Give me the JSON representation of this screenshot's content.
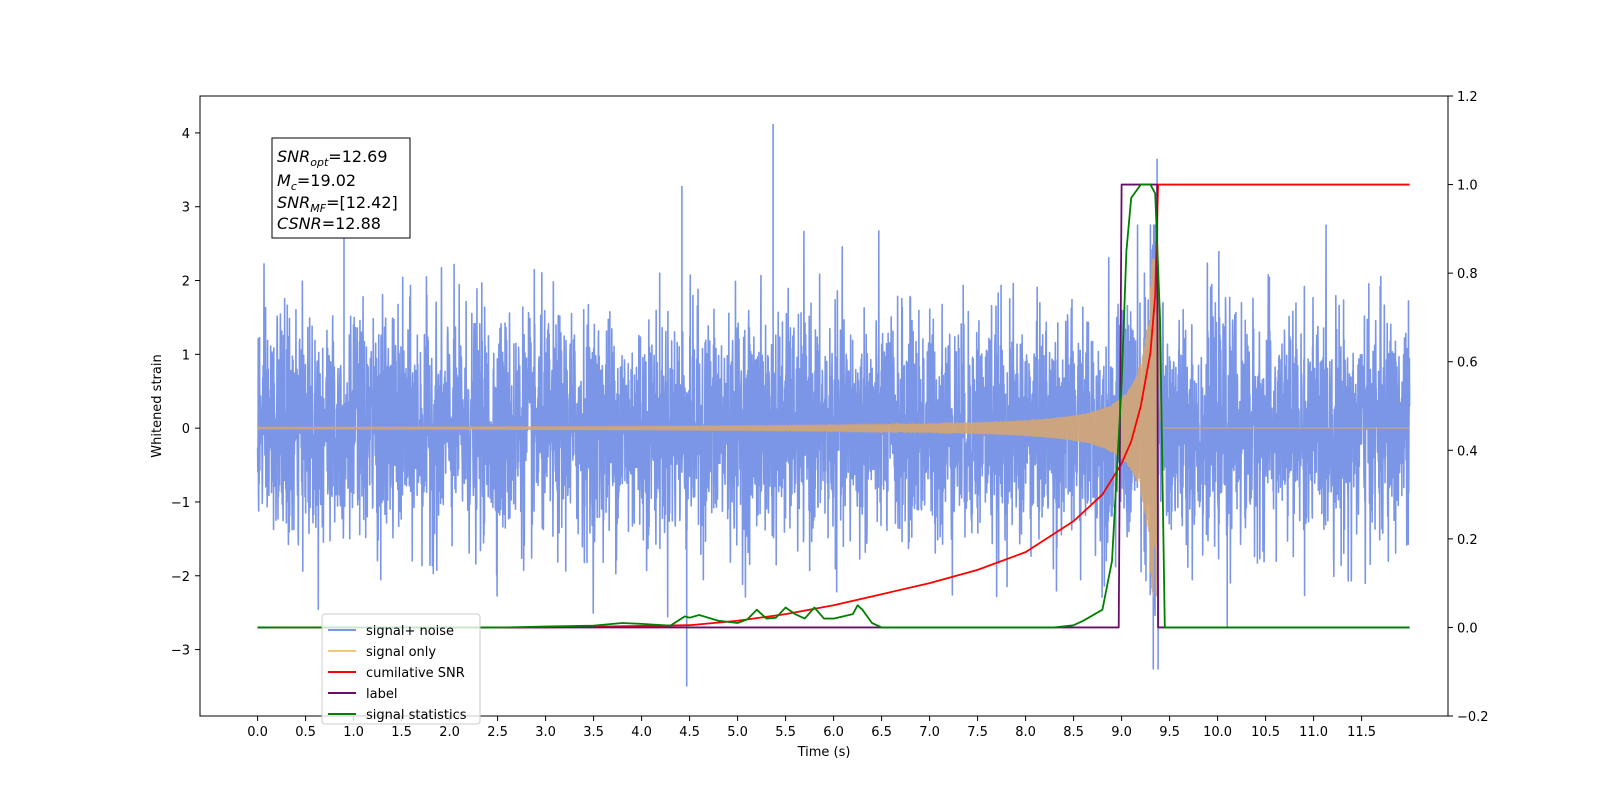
{
  "chart_data": {
    "type": "line",
    "xlabel": "Time (s)",
    "ylabel": "Whitened strain",
    "xlim": [
      -0.6,
      12.4
    ],
    "ylim": [
      -3.9,
      4.5
    ],
    "y2lim": [
      -0.2,
      1.2
    ],
    "x_ticks": [
      "0.0",
      "0.5",
      "1.0",
      "1.5",
      "2.0",
      "2.5",
      "3.0",
      "3.5",
      "4.0",
      "4.5",
      "5.0",
      "5.5",
      "6.0",
      "6.5",
      "7.0",
      "7.5",
      "8.0",
      "8.5",
      "9.0",
      "9.5",
      "10.0",
      "10.5",
      "11.0",
      "11.5"
    ],
    "y_ticks": [
      "−3",
      "−2",
      "−1",
      "0",
      "1",
      "2",
      "3",
      "4"
    ],
    "y2_ticks": [
      "−0.2",
      "0.0",
      "0.2",
      "0.4",
      "0.6",
      "0.8",
      "1.0",
      "1.2"
    ],
    "annotation": {
      "snr_opt": {
        "base": "SNR",
        "sub": "opt",
        "value": "=12.69"
      },
      "mc": {
        "base": "M",
        "sub": "c",
        "value": "=19.02"
      },
      "snr_mf": {
        "base": "SNR",
        "sub": "MF",
        "value": "=[12.42]"
      },
      "csnr": {
        "base": "CSNR",
        "sub": "",
        "value": "=12.88"
      }
    },
    "legend": {
      "position": "lower-left",
      "entries": [
        {
          "label": "signal+ noise",
          "color": "#7b96e6"
        },
        {
          "label": "signal only",
          "color": "#f5c77a"
        },
        {
          "label": "cumilative SNR",
          "color": "#ff0000"
        },
        {
          "label": "label",
          "color": "#6a0d6a"
        },
        {
          "label": "signal statistics",
          "color": "#008000"
        }
      ]
    },
    "series": [
      {
        "name": "signal+ noise",
        "axis": "left",
        "color": "#7b96e6",
        "description_values": {
          "t_start": 0.0,
          "t_end": 12.0,
          "std": 0.75,
          "max": 4.12,
          "min": -3.5
        },
        "spikes": [
          [
            5.37,
            4.12
          ],
          [
            9.37,
            3.65
          ],
          [
            4.47,
            -3.5
          ],
          [
            4.42,
            3.28
          ],
          [
            9.33,
            -3.27
          ],
          [
            9.38,
            -3.27
          ],
          [
            0.9,
            2.95
          ],
          [
            10.1,
            -2.7
          ]
        ]
      },
      {
        "name": "signal only",
        "axis": "left",
        "color": "#d4a574",
        "chirp": {
          "t_merge": 9.38,
          "amp_at_merge": 2.3,
          "amp_at_6": 0.04,
          "ringdown_end": 9.42
        }
      },
      {
        "name": "cumilative SNR",
        "axis": "right",
        "color": "#ff0000",
        "x": [
          0.0,
          3.0,
          4.5,
          5.0,
          5.5,
          6.0,
          6.5,
          7.0,
          7.5,
          8.0,
          8.5,
          8.8,
          9.0,
          9.1,
          9.2,
          9.3,
          9.35,
          9.38,
          9.4,
          12.0
        ],
        "y": [
          0.0,
          0.0,
          0.005,
          0.015,
          0.03,
          0.05,
          0.075,
          0.1,
          0.13,
          0.17,
          0.24,
          0.3,
          0.37,
          0.42,
          0.5,
          0.62,
          0.75,
          1.0,
          1.0,
          1.0
        ]
      },
      {
        "name": "label",
        "axis": "right",
        "color": "#6a0d6a",
        "x": [
          0.0,
          8.97,
          9.0,
          9.37,
          9.38,
          12.0
        ],
        "y": [
          0.0,
          0.0,
          1.0,
          1.0,
          0.0,
          0.0
        ]
      },
      {
        "name": "signal statistics",
        "axis": "right",
        "color": "#008000",
        "x": [
          0.0,
          2.6,
          3.0,
          3.5,
          3.8,
          4.0,
          4.3,
          4.45,
          4.5,
          4.6,
          4.8,
          5.0,
          5.1,
          5.2,
          5.3,
          5.4,
          5.5,
          5.6,
          5.7,
          5.8,
          5.9,
          6.0,
          6.1,
          6.2,
          6.25,
          6.3,
          6.4,
          6.5,
          8.3,
          8.5,
          8.6,
          8.8,
          8.9,
          9.0,
          9.05,
          9.1,
          9.2,
          9.3,
          9.35,
          9.4,
          9.45,
          9.5,
          12.0
        ],
        "y": [
          0.0,
          0.0,
          0.002,
          0.004,
          0.01,
          0.008,
          0.004,
          0.025,
          0.022,
          0.028,
          0.015,
          0.01,
          0.018,
          0.04,
          0.02,
          0.022,
          0.045,
          0.03,
          0.02,
          0.045,
          0.02,
          0.02,
          0.025,
          0.03,
          0.05,
          0.04,
          0.01,
          0.0,
          0.0,
          0.005,
          0.015,
          0.04,
          0.15,
          0.55,
          0.85,
          0.97,
          1.0,
          1.0,
          0.98,
          0.7,
          0.0,
          0.0,
          0.0
        ]
      }
    ]
  }
}
